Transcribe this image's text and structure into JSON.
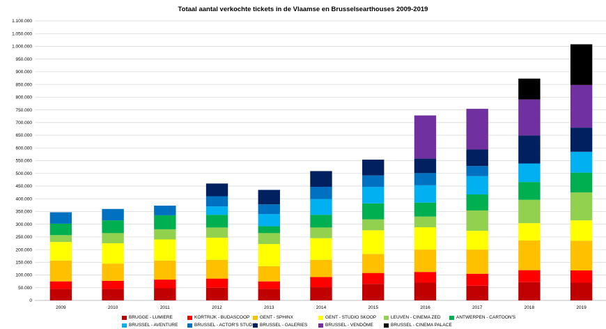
{
  "chart_data": {
    "type": "bar",
    "stacked": true,
    "title": "Totaal aantal verkochte tickets in de Vlaamse  en Brusselsearthouses 2009-2019",
    "categories": [
      "2009",
      "2010",
      "2011",
      "2012",
      "2013",
      "2014",
      "2015",
      "2016",
      "2017",
      "2018",
      "2019"
    ],
    "ylim": [
      0,
      1100000
    ],
    "yticks": [
      "0",
      "50.000",
      "100.000",
      "150.000",
      "200.000",
      "250.000",
      "300.000",
      "350.000",
      "400.000",
      "450.000",
      "500.000",
      "550.000",
      "600.000",
      "650.000",
      "700.000",
      "750.000",
      "800.000",
      "850.000",
      "900.000",
      "950.000",
      "1.000.000",
      "1.050.000",
      "1.100.000"
    ],
    "grid": true,
    "legend_position": "bottom",
    "series": [
      {
        "name": "BRUGGE - LUMIERE",
        "color": "#C00000",
        "values": [
          45000,
          45000,
          48000,
          50000,
          45000,
          52000,
          65000,
          70000,
          58000,
          72000,
          70000
        ]
      },
      {
        "name": "KORTRIJK - BUDASCOOP",
        "color": "#FF0000",
        "values": [
          30000,
          32000,
          34000,
          36000,
          30000,
          40000,
          43000,
          42000,
          47000,
          47000,
          48000
        ]
      },
      {
        "name": "GENT - SPHINX",
        "color": "#FFC000",
        "values": [
          82000,
          68000,
          75000,
          74000,
          60000,
          68000,
          75000,
          88000,
          95000,
          117000,
          117000
        ]
      },
      {
        "name": "GENT - STUDIO SKOOP",
        "color": "#FFFF00",
        "values": [
          73000,
          80000,
          83000,
          87000,
          87000,
          85000,
          93000,
          88000,
          74000,
          68000,
          80000
        ]
      },
      {
        "name": "LEUVEN - CINEMA ZED",
        "color": "#92D050",
        "values": [
          27000,
          40000,
          40000,
          40000,
          43000,
          42000,
          43000,
          42000,
          80000,
          92000,
          110000
        ]
      },
      {
        "name": "ANTWERPEN - CARTOON'S",
        "color": "#00B050",
        "values": [
          45000,
          50000,
          55000,
          50000,
          27000,
          50000,
          63000,
          55000,
          63000,
          70000,
          78000
        ]
      },
      {
        "name": "BRUSSEL - AVENTURE",
        "color": "#00B0F0",
        "values": [
          0,
          0,
          0,
          33000,
          48000,
          62000,
          65000,
          68000,
          72000,
          73000,
          82000
        ]
      },
      {
        "name": "BRUSSEL - ACTOR'S STUDIO",
        "color": "#0070C0",
        "values": [
          45000,
          45000,
          38000,
          40000,
          38000,
          48000,
          45000,
          48000,
          40000,
          0,
          0
        ]
      },
      {
        "name": "BRUSSEL - GALERIES",
        "color": "#002060",
        "values": [
          0,
          0,
          0,
          50000,
          57000,
          62000,
          62000,
          57000,
          65000,
          110000,
          95000
        ]
      },
      {
        "name": "BRUSSEL - VENDÔME",
        "color": "#7030A0",
        "values": [
          0,
          0,
          0,
          0,
          0,
          0,
          0,
          170000,
          160000,
          142000,
          168000
        ]
      },
      {
        "name": "BRUSSEL - CINEMA PALACE",
        "color": "#000000",
        "values": [
          0,
          0,
          0,
          0,
          0,
          0,
          0,
          0,
          0,
          82000,
          160000
        ]
      }
    ]
  }
}
